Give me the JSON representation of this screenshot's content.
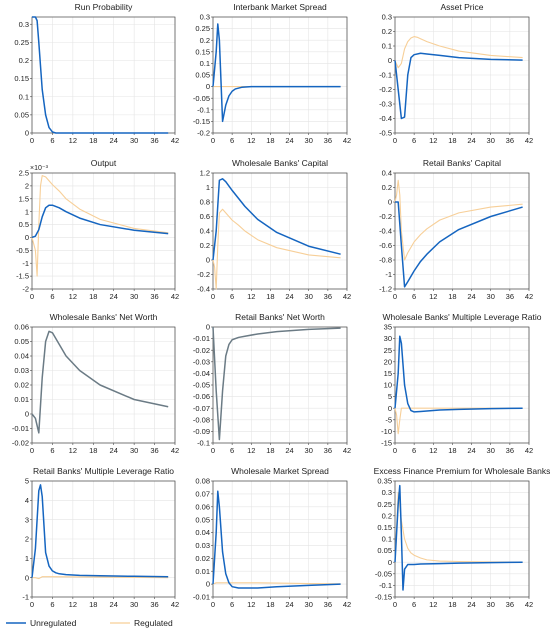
{
  "colors": {
    "unregulated": "#1565c0",
    "regulated": "#f7cf98",
    "single": "#6b7b85",
    "grid": "#e4e4e4",
    "axis": "#444444"
  },
  "legend": {
    "unregulated": "Unregulated",
    "regulated": "Regulated",
    "placement": "bottom-left"
  },
  "chart_data": [
    {
      "type": "line",
      "title": "Run Probability",
      "xlabel": "",
      "ylabel": "",
      "xlim": [
        0,
        42
      ],
      "ylim": [
        0,
        0.32
      ],
      "xticks": [
        0,
        6,
        12,
        18,
        24,
        30,
        36,
        42
      ],
      "yticks": [
        0,
        0.05,
        0.1,
        0.15,
        0.2,
        0.25,
        0.3
      ],
      "yticklabels": [
        "0",
        "0.05",
        "0.1",
        "0.15",
        "0.2",
        "0.25",
        "0.3"
      ],
      "grid": true,
      "series": [
        {
          "name": "Unregulated",
          "x": [
            0,
            1,
            1.5,
            2,
            3,
            4,
            5,
            6,
            7,
            40
          ],
          "y": [
            0.32,
            0.32,
            0.31,
            0.25,
            0.12,
            0.05,
            0.015,
            0.003,
            0,
            0
          ]
        }
      ]
    },
    {
      "type": "line",
      "title": "Interbank Market Spread",
      "xlabel": "",
      "ylabel": "",
      "xlim": [
        0,
        42
      ],
      "ylim": [
        -0.2,
        0.3
      ],
      "xticks": [
        0,
        6,
        12,
        18,
        24,
        30,
        36,
        42
      ],
      "yticks": [
        -0.2,
        -0.15,
        -0.1,
        -0.05,
        0,
        0.05,
        0.1,
        0.15,
        0.2,
        0.25,
        0.3
      ],
      "yticklabels": [
        "-0.2",
        "-0.15",
        "-0.1",
        "-0.05",
        "0",
        "0.05",
        "0.1",
        "0.15",
        "0.2",
        "0.25",
        "0.3"
      ],
      "grid": true,
      "series": [
        {
          "name": "Unregulated",
          "x": [
            0,
            1,
            1.5,
            2,
            3,
            4,
            5,
            6,
            7,
            9,
            12,
            20,
            40
          ],
          "y": [
            0,
            0.15,
            0.27,
            0.2,
            -0.15,
            -0.08,
            -0.04,
            -0.02,
            -0.01,
            -0.003,
            0,
            0,
            0
          ]
        },
        {
          "name": "Regulated",
          "x": [
            0,
            40
          ],
          "y": [
            0,
            0
          ]
        }
      ]
    },
    {
      "type": "line",
      "title": "Asset Price",
      "xlabel": "",
      "ylabel": "",
      "xlim": [
        0,
        42
      ],
      "ylim": [
        -0.5,
        0.3
      ],
      "xticks": [
        0,
        6,
        12,
        18,
        24,
        30,
        36,
        42
      ],
      "yticks": [
        -0.5,
        -0.4,
        -0.3,
        -0.2,
        -0.1,
        0,
        0.1,
        0.2,
        0.3
      ],
      "yticklabels": [
        "-0.5",
        "-0.4",
        "-0.3",
        "-0.2",
        "-0.1",
        "0",
        "0.1",
        "0.2",
        "0.3"
      ],
      "grid": true,
      "series": [
        {
          "name": "Unregulated",
          "x": [
            0,
            1,
            2,
            3,
            4,
            5,
            6,
            8,
            10,
            14,
            20,
            30,
            40
          ],
          "y": [
            0,
            -0.2,
            -0.4,
            -0.39,
            -0.1,
            0.02,
            0.04,
            0.05,
            0.045,
            0.035,
            0.02,
            0.008,
            0.003
          ]
        },
        {
          "name": "Regulated",
          "x": [
            0,
            1,
            2,
            3,
            4,
            5,
            6,
            7,
            8,
            10,
            14,
            20,
            30,
            40
          ],
          "y": [
            0,
            -0.05,
            -0.02,
            0.08,
            0.13,
            0.155,
            0.165,
            0.16,
            0.15,
            0.13,
            0.1,
            0.065,
            0.035,
            0.02
          ]
        }
      ]
    },
    {
      "type": "line",
      "title": "Output",
      "xlabel": "",
      "ylabel": "",
      "y_multiplier": "×10⁻³",
      "xlim": [
        0,
        42
      ],
      "ylim": [
        -2,
        2.5
      ],
      "xticks": [
        0,
        6,
        12,
        18,
        24,
        30,
        36,
        42
      ],
      "yticks": [
        -2,
        -1.5,
        -1,
        -0.5,
        0,
        0.5,
        1,
        1.5,
        2,
        2.5
      ],
      "yticklabels": [
        "-2",
        "-1.5",
        "-1",
        "-0.5",
        "0",
        "0.5",
        "1",
        "1.5",
        "2",
        "2.5"
      ],
      "grid": true,
      "series": [
        {
          "name": "Unregulated",
          "x": [
            0,
            1,
            2,
            3,
            4,
            5,
            6,
            8,
            10,
            14,
            20,
            30,
            40
          ],
          "y": [
            0,
            0.05,
            0.3,
            0.8,
            1.15,
            1.25,
            1.25,
            1.15,
            1.0,
            0.75,
            0.5,
            0.28,
            0.15
          ]
        },
        {
          "name": "Regulated",
          "x": [
            0,
            1,
            1.5,
            2,
            2.5,
            3,
            4,
            5,
            6,
            8,
            10,
            14,
            20,
            30,
            40
          ],
          "y": [
            0,
            -0.5,
            -1.5,
            0.5,
            2.0,
            2.4,
            2.35,
            2.2,
            2.05,
            1.8,
            1.5,
            1.1,
            0.7,
            0.35,
            0.18
          ]
        }
      ]
    },
    {
      "type": "line",
      "title": "Wholesale Banks' Capital",
      "xlabel": "",
      "ylabel": "",
      "xlim": [
        0,
        42
      ],
      "ylim": [
        -0.4,
        1.2
      ],
      "xticks": [
        0,
        6,
        12,
        18,
        24,
        30,
        36,
        42
      ],
      "yticks": [
        -0.4,
        -0.2,
        0,
        0.2,
        0.4,
        0.6,
        0.8,
        1,
        1.2
      ],
      "yticklabels": [
        "-0.4",
        "-0.2",
        "0",
        "0.2",
        "0.4",
        "0.6",
        "0.8",
        "1",
        "1.2"
      ],
      "grid": true,
      "series": [
        {
          "name": "Unregulated",
          "x": [
            0,
            1,
            2,
            3,
            4,
            5,
            6,
            8,
            10,
            14,
            20,
            30,
            40
          ],
          "y": [
            0,
            0.4,
            1.1,
            1.12,
            1.08,
            1.02,
            0.96,
            0.85,
            0.74,
            0.56,
            0.38,
            0.19,
            0.08
          ]
        },
        {
          "name": "Regulated",
          "x": [
            0,
            0.5,
            1,
            1.5,
            2,
            3,
            4,
            6,
            8,
            10,
            14,
            20,
            30,
            40
          ],
          "y": [
            0,
            -0.1,
            -0.4,
            0.2,
            0.65,
            0.7,
            0.65,
            0.55,
            0.48,
            0.4,
            0.28,
            0.17,
            0.07,
            0.03
          ]
        }
      ]
    },
    {
      "type": "line",
      "title": "Retail Banks' Capital",
      "xlabel": "",
      "ylabel": "",
      "xlim": [
        0,
        42
      ],
      "ylim": [
        -1.2,
        0.4
      ],
      "xticks": [
        0,
        6,
        12,
        18,
        24,
        30,
        36,
        42
      ],
      "yticks": [
        -1.2,
        -1,
        -0.8,
        -0.6,
        -0.4,
        -0.2,
        0,
        0.2,
        0.4
      ],
      "yticklabels": [
        "-1.2",
        "-1",
        "-0.8",
        "-0.6",
        "-0.4",
        "-0.2",
        "0",
        "0.2",
        "0.4"
      ],
      "grid": true,
      "series": [
        {
          "name": "Unregulated",
          "x": [
            0,
            1,
            2,
            3,
            4,
            6,
            8,
            10,
            14,
            20,
            30,
            40
          ],
          "y": [
            0,
            0,
            -0.6,
            -1.17,
            -1.1,
            -0.95,
            -0.82,
            -0.72,
            -0.55,
            -0.38,
            -0.2,
            -0.07
          ]
        },
        {
          "name": "Regulated",
          "x": [
            0,
            0.5,
            1,
            1.5,
            2,
            3,
            4,
            6,
            8,
            10,
            14,
            20,
            30,
            40
          ],
          "y": [
            0,
            0.1,
            0.3,
            0.1,
            -0.4,
            -0.8,
            -0.7,
            -0.55,
            -0.45,
            -0.37,
            -0.25,
            -0.15,
            -0.07,
            -0.03
          ]
        }
      ]
    },
    {
      "type": "line",
      "title": "Wholesale Banks' Net Worth",
      "xlabel": "",
      "ylabel": "",
      "xlim": [
        0,
        42
      ],
      "ylim": [
        -0.02,
        0.06
      ],
      "xticks": [
        0,
        6,
        12,
        18,
        24,
        30,
        36,
        42
      ],
      "yticks": [
        -0.02,
        -0.01,
        0,
        0.01,
        0.02,
        0.03,
        0.04,
        0.05,
        0.06
      ],
      "yticklabels": [
        "-0.02",
        "-0.01",
        "0",
        "0.01",
        "0.02",
        "0.03",
        "0.04",
        "0.05",
        "0.06"
      ],
      "grid": true,
      "series": [
        {
          "name": "",
          "x": [
            0,
            1,
            2,
            3,
            4,
            5,
            6,
            8,
            10,
            14,
            20,
            30,
            40
          ],
          "y": [
            0,
            -0.003,
            -0.013,
            0.025,
            0.05,
            0.057,
            0.056,
            0.048,
            0.04,
            0.03,
            0.02,
            0.01,
            0.005
          ]
        }
      ]
    },
    {
      "type": "line",
      "title": "Retail Banks' Net Worth",
      "xlabel": "",
      "ylabel": "",
      "xlim": [
        0,
        42
      ],
      "ylim": [
        -0.1,
        0
      ],
      "xticks": [
        0,
        6,
        12,
        18,
        24,
        30,
        36,
        42
      ],
      "yticks": [
        -0.1,
        -0.09,
        -0.08,
        -0.07,
        -0.06,
        -0.05,
        -0.04,
        -0.03,
        -0.02,
        -0.01,
        0
      ],
      "yticklabels": [
        "-0.1",
        "-0.09",
        "-0.08",
        "-0.07",
        "-0.06",
        "-0.05",
        "-0.04",
        "-0.03",
        "-0.02",
        "-0.01",
        "0"
      ],
      "grid": true,
      "series": [
        {
          "name": "",
          "x": [
            0,
            1,
            2,
            3,
            4,
            5,
            6,
            8,
            10,
            14,
            20,
            30,
            40
          ],
          "y": [
            0,
            -0.055,
            -0.097,
            -0.055,
            -0.025,
            -0.015,
            -0.011,
            -0.009,
            -0.008,
            -0.006,
            -0.004,
            -0.002,
            -0.001
          ]
        }
      ]
    },
    {
      "type": "line",
      "title": "Wholesale Banks' Multiple Leverage Ratio",
      "xlabel": "",
      "ylabel": "",
      "xlim": [
        0,
        42
      ],
      "ylim": [
        -15,
        35
      ],
      "xticks": [
        0,
        6,
        12,
        18,
        24,
        30,
        36,
        42
      ],
      "yticks": [
        -15,
        -10,
        -5,
        0,
        5,
        10,
        15,
        20,
        25,
        30,
        35
      ],
      "yticklabels": [
        "-15",
        "-10",
        "-5",
        "0",
        "5",
        "10",
        "15",
        "20",
        "25",
        "30",
        "35"
      ],
      "grid": true,
      "series": [
        {
          "name": "Unregulated",
          "x": [
            0,
            1,
            1.5,
            2,
            3,
            4,
            5,
            6,
            8,
            10,
            14,
            20,
            30,
            40
          ],
          "y": [
            0,
            15,
            31,
            28,
            10,
            2,
            -1,
            -1.6,
            -1.4,
            -1.2,
            -0.8,
            -0.5,
            -0.2,
            0
          ]
        },
        {
          "name": "Regulated",
          "x": [
            0,
            0.5,
            1,
            1.5,
            2,
            3,
            4,
            6,
            40
          ],
          "y": [
            0,
            -3,
            -11,
            -5,
            0,
            0,
            0,
            0,
            0
          ]
        }
      ]
    },
    {
      "type": "line",
      "title": "Retail Banks' Multiple Leverage Ratio",
      "xlabel": "",
      "ylabel": "",
      "xlim": [
        0,
        42
      ],
      "ylim": [
        -1,
        5
      ],
      "xticks": [
        0,
        6,
        12,
        18,
        24,
        30,
        36,
        42
      ],
      "yticks": [
        -1,
        0,
        1,
        2,
        3,
        4,
        5
      ],
      "yticklabels": [
        "-1",
        "0",
        "1",
        "2",
        "3",
        "4",
        "5"
      ],
      "grid": true,
      "series": [
        {
          "name": "Unregulated",
          "x": [
            0,
            1,
            2,
            2.5,
            3,
            4,
            5,
            6,
            7,
            8,
            10,
            14,
            20,
            30,
            40
          ],
          "y": [
            0,
            1.5,
            4.5,
            4.8,
            4.2,
            1.3,
            0.6,
            0.35,
            0.25,
            0.2,
            0.16,
            0.12,
            0.1,
            0.07,
            0.05
          ]
        },
        {
          "name": "Regulated",
          "x": [
            0,
            1,
            2,
            3,
            6,
            40
          ],
          "y": [
            0,
            0,
            -0.05,
            0.05,
            0.05,
            0
          ]
        }
      ]
    },
    {
      "type": "line",
      "title": "Wholesale Market Spread",
      "xlabel": "",
      "ylabel": "",
      "xlim": [
        0,
        42
      ],
      "ylim": [
        -0.01,
        0.08
      ],
      "xticks": [
        0,
        6,
        12,
        18,
        24,
        30,
        36,
        42
      ],
      "yticks": [
        -0.01,
        0,
        0.01,
        0.02,
        0.03,
        0.04,
        0.05,
        0.06,
        0.07,
        0.08
      ],
      "yticklabels": [
        "-0.01",
        "0",
        "0.01",
        "0.02",
        "0.03",
        "0.04",
        "0.05",
        "0.06",
        "0.07",
        "0.08"
      ],
      "grid": true,
      "series": [
        {
          "name": "Unregulated",
          "x": [
            0,
            1,
            1.5,
            2,
            3,
            4,
            5,
            6,
            8,
            10,
            14,
            20,
            30,
            40
          ],
          "y": [
            0,
            0.04,
            0.072,
            0.06,
            0.025,
            0.008,
            0.001,
            -0.002,
            -0.003,
            -0.003,
            -0.003,
            -0.002,
            -0.001,
            0
          ]
        },
        {
          "name": "Regulated",
          "x": [
            0,
            1,
            2,
            6,
            14,
            20,
            30,
            40
          ],
          "y": [
            0,
            0.001,
            0.001,
            0.001,
            0.001,
            0.0008,
            0.0004,
            0.0002
          ]
        }
      ]
    },
    {
      "type": "line",
      "title": "Excess Finance Premium for Wholesale Banks",
      "xlabel": "",
      "ylabel": "",
      "xlim": [
        0,
        42
      ],
      "ylim": [
        -0.15,
        0.35
      ],
      "xticks": [
        0,
        6,
        12,
        18,
        24,
        30,
        36,
        42
      ],
      "yticks": [
        -0.15,
        -0.1,
        -0.05,
        0,
        0.05,
        0.1,
        0.15,
        0.2,
        0.25,
        0.3,
        0.35
      ],
      "yticklabels": [
        "-0.15",
        "-0.1",
        "-0.05",
        "0",
        "0.05",
        "0.1",
        "0.15",
        "0.2",
        "0.25",
        "0.3",
        "0.35"
      ],
      "grid": true,
      "series": [
        {
          "name": "Unregulated",
          "x": [
            0,
            1,
            1.5,
            2,
            2.5,
            3,
            4,
            5,
            6,
            8,
            14,
            20,
            30,
            40
          ],
          "y": [
            0,
            0.25,
            0.33,
            0.12,
            -0.12,
            -0.03,
            -0.01,
            -0.01,
            -0.01,
            -0.008,
            -0.006,
            -0.004,
            -0.002,
            0
          ]
        },
        {
          "name": "Regulated",
          "x": [
            0,
            1,
            2,
            3,
            4,
            5,
            6,
            8,
            10,
            14,
            20,
            30,
            40
          ],
          "y": [
            0,
            0.3,
            0.18,
            0.1,
            0.06,
            0.04,
            0.03,
            0.018,
            0.01,
            0.005,
            0.003,
            0.001,
            0
          ]
        }
      ]
    }
  ]
}
